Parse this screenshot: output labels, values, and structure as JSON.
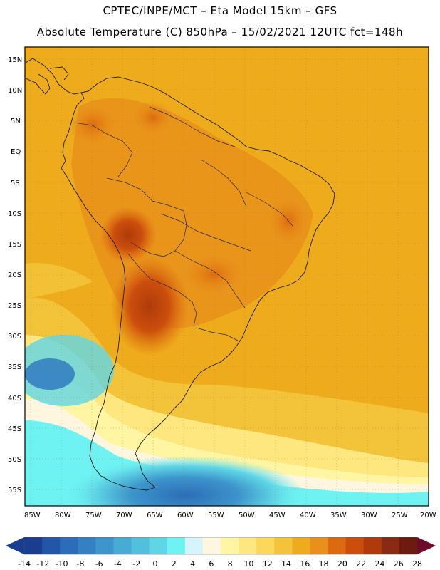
{
  "header": {
    "line1": "CPTEC/INPE/MCT –  Eta Model 15km – GFS",
    "line2": "Absolute Temperature (C) 850hPa – 15/02/2021 12UTC fct=148h"
  },
  "map": {
    "lat_labels": [
      "15N",
      "10N",
      "5N",
      "EQ",
      "5S",
      "10S",
      "15S",
      "20S",
      "25S",
      "30S",
      "35S",
      "40S",
      "45S",
      "50S",
      "55S"
    ],
    "lon_labels": [
      "85W",
      "80W",
      "75W",
      "70W",
      "65W",
      "60W",
      "55W",
      "50W",
      "45W",
      "40W",
      "35W",
      "30W",
      "25W",
      "20W"
    ],
    "field_extent_deg": {
      "west": -85,
      "east": -20,
      "north": 15,
      "south": -55
    }
  },
  "colorbar": {
    "ticks": [
      "-14",
      "-12",
      "-10",
      "-8",
      "-6",
      "-4",
      "-2",
      "0",
      "2",
      "4",
      "6",
      "8",
      "10",
      "12",
      "14",
      "16",
      "18",
      "20",
      "22",
      "24",
      "26",
      "28"
    ],
    "colors": [
      "#1a3d8f",
      "#2256a8",
      "#2b6db8",
      "#3580c2",
      "#3d95cb",
      "#48abd4",
      "#52c0dc",
      "#5fd6e6",
      "#6ef2f2",
      "#d6f5fb",
      "#fff6e0",
      "#fff5a3",
      "#ffe780",
      "#fbd85a",
      "#f3c33a",
      "#eeac1c",
      "#e8901a",
      "#de6a0f",
      "#cc4e0c",
      "#b03a0a",
      "#8b2a12",
      "#6d1a10"
    ],
    "low_end_color": "#1a3d8f",
    "high_end_color": "#6d0b2b"
  }
}
